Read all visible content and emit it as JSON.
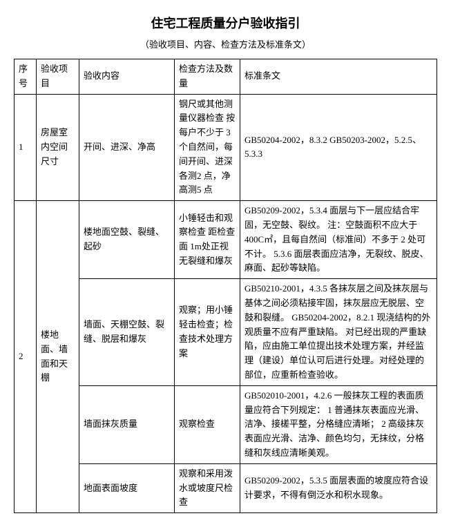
{
  "title": "住宅工程质量分户验收指引",
  "subtitle": "（验收项目、内容、检查方法及标准条文）",
  "headers": {
    "seq": "序号",
    "item": "验收项目",
    "content": "验收内容",
    "method": "检查方法及数量",
    "standard": "标准条文"
  },
  "rows": [
    {
      "seq": "1",
      "item": "房屋室内空间尺寸",
      "content": "开间、进深、净高",
      "method": "钢尺或其他测量仪器检查\n按每户不少于 3 个自然间，每间开间、进深各测2 点，净高测5 点",
      "standard": "GB50204-2002，8.3.2\nGB50203-2002，5.2.5、5.3.3"
    },
    {
      "seq": "2",
      "item": "楼地面、墙面和天棚",
      "sub": [
        {
          "content": "楼地面空鼓、裂缝、起砂",
          "method": "小锤轻击和观察检查\n距检查面 1m处正视无裂缝和爆灰",
          "standard": "GB50209-2002，5.3.4 面层与下一层应结合牢固，无空鼓、裂纹。\n注：空鼓面积不应大于 400C㎡，且每自然间（标准间）不多于 2 处可不计。\n5.3.6 面层表面应洁净，无裂纹、脱皮、麻面、起砂等缺陷。"
        },
        {
          "content": "墙面、天棚空鼓、裂缝、脱层和爆灰",
          "method": "观察；用小锤轻击检查；检查技术处理方案",
          "standard": "GB50210-2001，4.3.5 各抹灰层之间及抹灰层与基体之间必须粘接牢固，抹灰层应无脱层、空鼓和裂缝。\nGB50204-2002，8.2.1 现浇结构的外观质量不应有严重缺陷。\n对已经出现的严重缺陷，应由施工单位提出技术处理方案，并经监理（建设）单位认可后进行处理。对经处理的部位，应重新检查验收。"
        },
        {
          "content": "墙面抹灰质量",
          "method": "观察检查",
          "standard": "GB502010-2001，4.2.6 一般抹灰工程的表面质量应符合下列规定：\n1 普通抹灰表面应光滑、洁净、接槎平整，分格缝应清晰；\n2 高级抹灰表面应光滑、洁净、颜色均匀，无抹纹，分格缝和灰线应清晰美观。"
        },
        {
          "content": "地面表面坡度",
          "method": "观察和采用泼水或坡度尺检查",
          "standard": "GB50209-2002，5.3.5 面层表面的坡度应符合设计要求，不得有倒泛水和积水现象。"
        }
      ]
    }
  ]
}
